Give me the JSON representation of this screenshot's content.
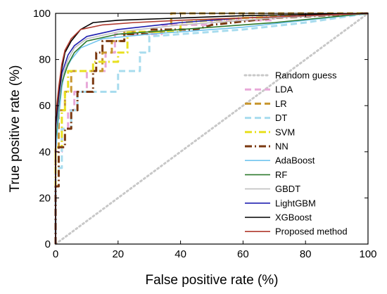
{
  "chart_data": {
    "type": "line",
    "xlabel": "False positive rate (%)",
    "ylabel": "True positive rate (%)",
    "xlim": [
      0,
      100
    ],
    "ylim": [
      0,
      100
    ],
    "xticks": [
      "0",
      "20",
      "40",
      "60",
      "80",
      "100"
    ],
    "yticks": [
      "0",
      "20",
      "40",
      "60",
      "80",
      "100"
    ],
    "grid": false,
    "legend_position": "bottom-right",
    "series": [
      {
        "name": "Random guess",
        "color": "#c8c8c8",
        "dash": "dotted",
        "points": [
          [
            0,
            0
          ],
          [
            100,
            100
          ]
        ]
      },
      {
        "name": "LDA",
        "color": "#e8a8d8",
        "dash": "dashed",
        "points": [
          [
            0,
            0
          ],
          [
            0,
            40
          ],
          [
            2,
            40
          ],
          [
            2,
            50
          ],
          [
            4,
            50
          ],
          [
            4,
            58
          ],
          [
            6,
            58
          ],
          [
            6,
            66
          ],
          [
            10,
            66
          ],
          [
            10,
            75
          ],
          [
            16,
            75
          ],
          [
            16,
            83
          ],
          [
            19,
            83
          ],
          [
            19,
            91
          ],
          [
            34,
            91
          ],
          [
            34,
            95
          ],
          [
            50,
            95
          ],
          [
            50,
            97
          ],
          [
            70,
            97
          ],
          [
            70,
            99
          ],
          [
            100,
            100
          ]
        ]
      },
      {
        "name": "LR",
        "color": "#c8962e",
        "dash": "dashed",
        "points": [
          [
            0,
            0
          ],
          [
            0,
            42
          ],
          [
            1,
            42
          ],
          [
            1,
            58
          ],
          [
            3,
            58
          ],
          [
            3,
            66
          ],
          [
            5,
            66
          ],
          [
            5,
            75
          ],
          [
            15,
            75
          ],
          [
            15,
            83
          ],
          [
            18,
            83
          ],
          [
            18,
            88
          ],
          [
            22,
            88
          ],
          [
            22,
            92
          ],
          [
            37,
            92
          ],
          [
            37,
            100
          ],
          [
            100,
            100
          ]
        ]
      },
      {
        "name": "DT",
        "color": "#a8dcee",
        "dash": "dashed",
        "points": [
          [
            0,
            0
          ],
          [
            0,
            33
          ],
          [
            2,
            33
          ],
          [
            2,
            50
          ],
          [
            5,
            50
          ],
          [
            5,
            58
          ],
          [
            7,
            58
          ],
          [
            7,
            66
          ],
          [
            20,
            66
          ],
          [
            20,
            75
          ],
          [
            27,
            75
          ],
          [
            27,
            83
          ],
          [
            30,
            83
          ],
          [
            30,
            90
          ],
          [
            60,
            93
          ],
          [
            80,
            96
          ],
          [
            100,
            100
          ]
        ]
      },
      {
        "name": "SVM",
        "color": "#e8e020",
        "dash": "dashdot",
        "points": [
          [
            0,
            0
          ],
          [
            0,
            42
          ],
          [
            2,
            42
          ],
          [
            2,
            58
          ],
          [
            3,
            58
          ],
          [
            3,
            66
          ],
          [
            4,
            66
          ],
          [
            4,
            75
          ],
          [
            12,
            75
          ],
          [
            12,
            79
          ],
          [
            20,
            79
          ],
          [
            20,
            83
          ],
          [
            23,
            83
          ],
          [
            23,
            92
          ],
          [
            40,
            92
          ],
          [
            40,
            96
          ],
          [
            60,
            98
          ],
          [
            100,
            100
          ]
        ]
      },
      {
        "name": "NN",
        "color": "#7a3810",
        "dash": "dashdot",
        "points": [
          [
            0,
            0
          ],
          [
            0,
            25
          ],
          [
            1,
            25
          ],
          [
            1,
            42
          ],
          [
            3,
            42
          ],
          [
            3,
            50
          ],
          [
            5,
            50
          ],
          [
            5,
            58
          ],
          [
            7,
            58
          ],
          [
            7,
            66
          ],
          [
            12,
            66
          ],
          [
            12,
            75
          ],
          [
            13,
            75
          ],
          [
            13,
            83
          ],
          [
            15,
            83
          ],
          [
            15,
            88
          ],
          [
            22,
            88
          ],
          [
            22,
            91
          ],
          [
            30,
            91
          ],
          [
            30,
            93
          ],
          [
            45,
            93
          ],
          [
            50,
            95
          ],
          [
            70,
            98
          ],
          [
            100,
            100
          ]
        ]
      },
      {
        "name": "AdaBoost",
        "color": "#70c4ee",
        "dash": "solid",
        "points": [
          [
            0,
            0
          ],
          [
            0,
            40
          ],
          [
            1,
            55
          ],
          [
            2,
            68
          ],
          [
            3,
            75
          ],
          [
            5,
            80
          ],
          [
            8,
            85
          ],
          [
            15,
            89
          ],
          [
            30,
            91
          ],
          [
            60,
            94
          ],
          [
            80,
            97
          ],
          [
            100,
            100
          ]
        ]
      },
      {
        "name": "RF",
        "color": "#2e7a2e",
        "dash": "solid",
        "points": [
          [
            0,
            0
          ],
          [
            0,
            45
          ],
          [
            1,
            60
          ],
          [
            2,
            70
          ],
          [
            4,
            78
          ],
          [
            6,
            83
          ],
          [
            10,
            88
          ],
          [
            20,
            91
          ],
          [
            40,
            93
          ],
          [
            70,
            96
          ],
          [
            100,
            100
          ]
        ]
      },
      {
        "name": "GBDT",
        "color": "#c0c0c0",
        "dash": "solid",
        "points": [
          [
            0,
            0
          ],
          [
            0,
            48
          ],
          [
            1,
            62
          ],
          [
            2,
            72
          ],
          [
            4,
            80
          ],
          [
            6,
            85
          ],
          [
            10,
            89
          ],
          [
            20,
            92
          ],
          [
            40,
            95
          ],
          [
            70,
            98
          ],
          [
            100,
            100
          ]
        ]
      },
      {
        "name": "LightGBM",
        "color": "#2020b0",
        "dash": "solid",
        "points": [
          [
            0,
            0
          ],
          [
            0,
            50
          ],
          [
            1,
            64
          ],
          [
            2,
            74
          ],
          [
            4,
            82
          ],
          [
            6,
            86
          ],
          [
            10,
            90
          ],
          [
            20,
            93
          ],
          [
            40,
            96
          ],
          [
            60,
            98
          ],
          [
            100,
            100
          ]
        ]
      },
      {
        "name": "XGBoost",
        "color": "#000000",
        "dash": "solid",
        "points": [
          [
            0,
            0
          ],
          [
            0,
            52
          ],
          [
            1,
            66
          ],
          [
            2,
            76
          ],
          [
            3,
            83
          ],
          [
            5,
            88
          ],
          [
            8,
            93
          ],
          [
            12,
            96
          ],
          [
            20,
            97
          ],
          [
            40,
            98
          ],
          [
            60,
            99
          ],
          [
            100,
            100
          ]
        ]
      },
      {
        "name": "Proposed method",
        "color": "#b03a2e",
        "dash": "solid",
        "points": [
          [
            0,
            0
          ],
          [
            0,
            55
          ],
          [
            1,
            68
          ],
          [
            2,
            78
          ],
          [
            3,
            84
          ],
          [
            5,
            89
          ],
          [
            8,
            93
          ],
          [
            15,
            95
          ],
          [
            25,
            96
          ],
          [
            40,
            97
          ],
          [
            60,
            98
          ],
          [
            100,
            100
          ]
        ]
      }
    ]
  }
}
